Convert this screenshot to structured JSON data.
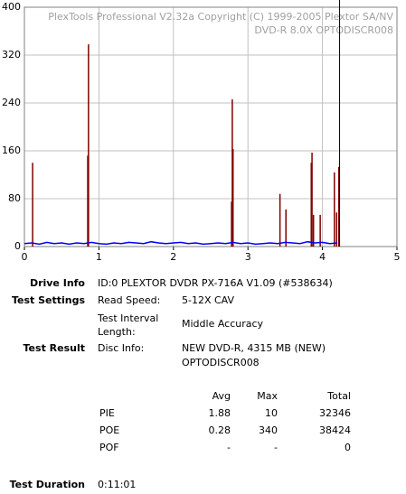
{
  "chart_data": {
    "type": "spike",
    "annotations": [
      "PlexTools Professional V2.32a Copyright (C) 1999-2005 Plextor SA/NV",
      "DVD-R   8.0X   OPTODISCR008"
    ],
    "xlim": [
      0,
      5
    ],
    "ylim": [
      0,
      400
    ],
    "xticks": [
      0,
      1,
      2,
      3,
      4,
      5
    ],
    "yticks": [
      0,
      80,
      160,
      240,
      320,
      400
    ],
    "grid": true,
    "series": [
      {
        "color": "#800000",
        "x": [
          0.11,
          0.85,
          0.86,
          2.78,
          2.79,
          2.8,
          3.43,
          3.51,
          3.85,
          3.86,
          3.88,
          3.97,
          4.16,
          4.19,
          4.22
        ],
        "values": [
          140,
          152,
          338,
          75,
          246,
          163,
          88,
          62,
          140,
          157,
          53,
          53,
          124,
          57,
          133
        ]
      },
      {
        "color": "#0000ff",
        "x": [
          0,
          0.1,
          0.2,
          0.3,
          0.4,
          0.5,
          0.6,
          0.7,
          0.8,
          0.9,
          1,
          1.1,
          1.2,
          1.3,
          1.4,
          1.5,
          1.6,
          1.7,
          1.8,
          1.9,
          2,
          2.1,
          2.2,
          2.3,
          2.4,
          2.5,
          2.6,
          2.7,
          2.8,
          2.9,
          3,
          3.1,
          3.2,
          3.3,
          3.4,
          3.5,
          3.6,
          3.7,
          3.8,
          3.9,
          4,
          4.1,
          4.2
        ],
        "values": [
          5,
          6,
          4,
          7,
          5,
          6,
          4,
          6,
          5,
          7,
          5,
          4,
          6,
          5,
          7,
          6,
          5,
          8,
          6,
          5,
          6,
          7,
          5,
          6,
          4,
          5,
          6,
          5,
          7,
          5,
          6,
          4,
          5,
          6,
          5,
          7,
          6,
          5,
          8,
          6,
          7,
          5,
          6
        ]
      }
    ],
    "markers": [
      {
        "x": 4.23,
        "color": "#000000"
      }
    ]
  },
  "document": {
    "drive_info": {
      "label": "Drive Info",
      "value": "ID:0 PLEXTOR DVDR PX-716A V1.09 (#538634)"
    },
    "test_settings": {
      "label": "Test Settings",
      "rows": [
        [
          "Read Speed:",
          "5-12X CAV"
        ],
        [
          "Test Interval Length:",
          "Middle Accuracy"
        ]
      ]
    },
    "test_result": {
      "label": "Test Result",
      "rows": [
        [
          "Disc Info:",
          "NEW DVD-R, 4315 MB (NEW) OPTODISCR008"
        ]
      ]
    },
    "table": {
      "header": [
        "Avg",
        "Max",
        "Total"
      ],
      "rows": [
        [
          "PIE",
          1.88,
          10,
          32346
        ],
        [
          "POE",
          0.28,
          340,
          38424
        ],
        [
          "POF",
          "-",
          "-",
          0
        ]
      ]
    },
    "test_duration": {
      "label": "Test Duration",
      "value": "0:11:01"
    }
  }
}
